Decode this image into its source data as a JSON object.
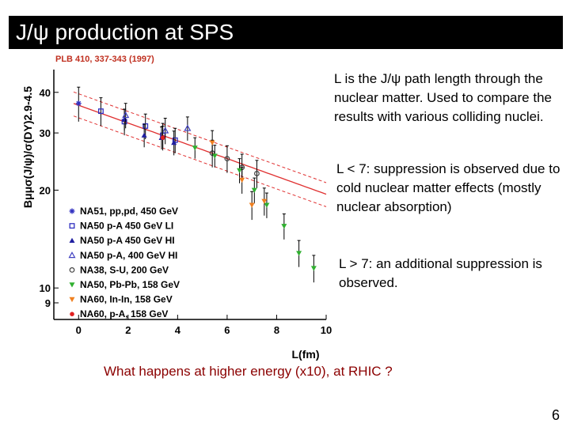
{
  "slide": {
    "title": "J/ψ production at SPS",
    "citation": "PLB 410, 337-343 (1997)",
    "text_blocks": [
      "L is the J/ψ path length through the nuclear matter. Used to compare the results with various colliding nuclei.",
      "L < 7: suppression is observed due to cold nuclear matter effects (mostly nuclear absorption)",
      "L > 7: an additional suppression is observed."
    ],
    "question": "What happens at higher energy (x10), at RHIC ?",
    "page_number": "6"
  },
  "chart_data": {
    "type": "scatter",
    "ylabel": "Bμμσ(J/ψ)/σ(DY)2.9-4.5",
    "xlabel": "L(fm)",
    "yscale": "log",
    "xlim": [
      -1,
      10
    ],
    "ylim": [
      8,
      47
    ],
    "xticks": [
      0,
      2,
      4,
      6,
      8,
      10
    ],
    "yticks": [
      {
        "value": 9,
        "label": "9"
      },
      {
        "value": 10,
        "label": "10"
      },
      {
        "value": 20,
        "label": "20"
      },
      {
        "value": 30,
        "label": "30"
      },
      {
        "value": 40,
        "label": "40"
      }
    ],
    "fit": {
      "a": 36.5,
      "b": 0.063,
      "band": 0.085,
      "color": "#e03030"
    },
    "series": [
      {
        "name": "NA51, pp,pd, 450 GeV",
        "marker": "star",
        "color": "#3030c0",
        "points": [
          {
            "x": 0.0,
            "y": 37.0,
            "err": 4.5
          }
        ]
      },
      {
        "name": "NA50 p-A 450 GeV LI",
        "marker": "square-open",
        "color": "#3030c0",
        "points": [
          {
            "x": 0.9,
            "y": 35.0,
            "err": 3.5
          },
          {
            "x": 1.85,
            "y": 32.5,
            "err": 3.0
          },
          {
            "x": 2.7,
            "y": 31.5,
            "err": 2.8
          },
          {
            "x": 3.4,
            "y": 29.5,
            "err": 2.6
          },
          {
            "x": 3.9,
            "y": 28.5,
            "err": 2.5
          }
        ]
      },
      {
        "name": "NA50 p-A 450 GeV HI",
        "marker": "triangle-filled",
        "color": "#2020a0",
        "points": [
          {
            "x": 1.85,
            "y": 33.0,
            "err": 2.5
          },
          {
            "x": 2.65,
            "y": 29.5,
            "err": 2.4
          },
          {
            "x": 3.35,
            "y": 29.0,
            "err": 2.3
          },
          {
            "x": 3.85,
            "y": 28.0,
            "err": 2.4
          }
        ]
      },
      {
        "name": "NA50 p-A, 400 GeV HI",
        "marker": "triangle-open",
        "color": "#4040c0",
        "points": [
          {
            "x": 1.9,
            "y": 34.0,
            "err": 3.0
          },
          {
            "x": 3.5,
            "y": 30.5,
            "err": 2.8
          },
          {
            "x": 4.4,
            "y": 31.0,
            "err": 2.6
          }
        ]
      },
      {
        "name": "NA38, S-U, 200 GeV",
        "marker": "circle-open",
        "color": "#404040",
        "points": [
          {
            "x": 5.4,
            "y": 26.0,
            "err": 2.5
          },
          {
            "x": 6.0,
            "y": 25.0,
            "err": 2.4
          },
          {
            "x": 6.6,
            "y": 23.5,
            "err": 2.3
          },
          {
            "x": 7.2,
            "y": 22.5,
            "err": 2.2
          }
        ]
      },
      {
        "name": "NA50, Pb-Pb, 158 GeV",
        "marker": "triangle-down",
        "color": "#30b030",
        "points": [
          {
            "x": 4.7,
            "y": 27.0,
            "err": 2.0
          },
          {
            "x": 5.5,
            "y": 25.5,
            "err": 2.0
          },
          {
            "x": 6.5,
            "y": 23.0,
            "err": 2.0
          },
          {
            "x": 7.1,
            "y": 20.0,
            "err": 1.8
          },
          {
            "x": 7.6,
            "y": 18.0,
            "err": 1.6
          },
          {
            "x": 8.3,
            "y": 15.5,
            "err": 1.4
          },
          {
            "x": 8.9,
            "y": 12.8,
            "err": 1.2
          },
          {
            "x": 9.5,
            "y": 11.5,
            "err": 1.1
          }
        ]
      },
      {
        "name": "NA60, In-In, 158 GeV",
        "marker": "triangle-down",
        "color": "#f08020",
        "points": [
          {
            "x": 5.4,
            "y": 28.0,
            "err": 2.5
          },
          {
            "x": 6.6,
            "y": 21.5,
            "err": 2.0
          },
          {
            "x": 7.0,
            "y": 18.0,
            "err": 1.8
          },
          {
            "x": 7.5,
            "y": 18.5,
            "err": 1.8
          }
        ]
      },
      {
        "name": "NA60, p-A, 158 GeV",
        "marker": "circle-filled",
        "color": "#e02020",
        "points": [
          {
            "x": 3.4,
            "y": 29.0,
            "err": 2.5
          }
        ]
      }
    ]
  }
}
